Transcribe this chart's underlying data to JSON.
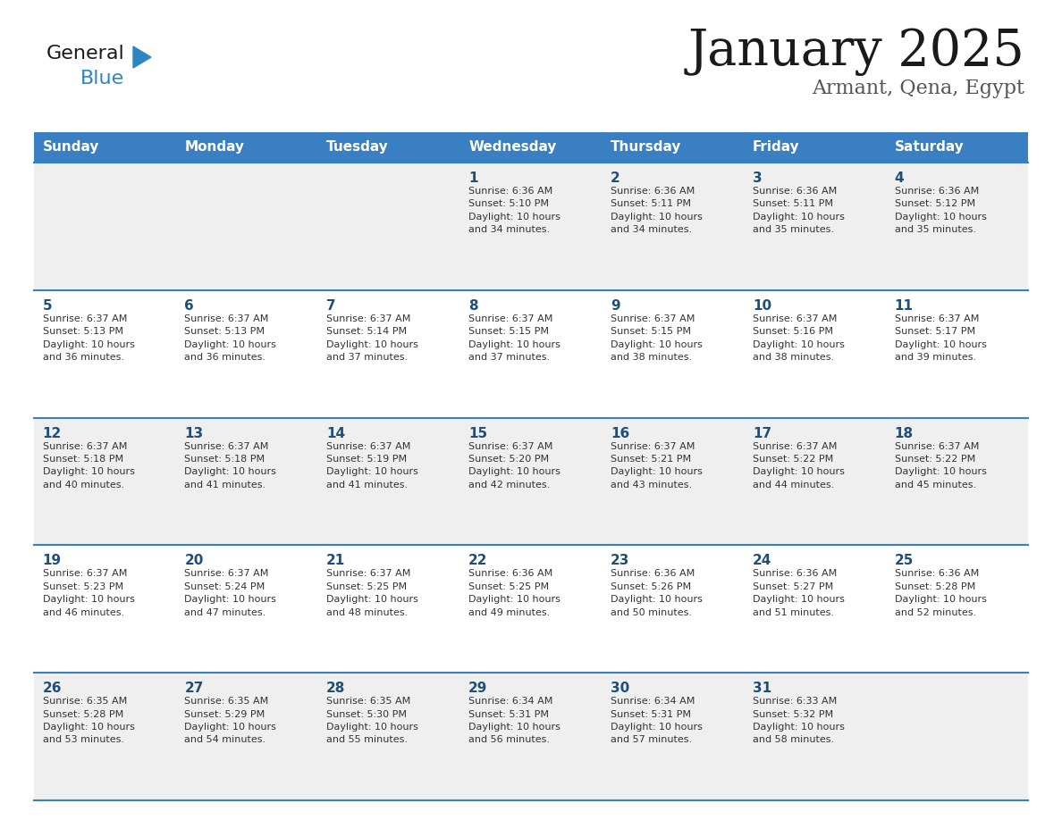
{
  "title": "January 2025",
  "subtitle": "Armant, Qena, Egypt",
  "days_of_week": [
    "Sunday",
    "Monday",
    "Tuesday",
    "Wednesday",
    "Thursday",
    "Friday",
    "Saturday"
  ],
  "header_bg": "#3A7FC1",
  "header_text_color": "#FFFFFF",
  "row_bg_even": "#EFEFEF",
  "row_bg_odd": "#FFFFFF",
  "day_text_color": "#1F4E79",
  "info_text_color": "#333333",
  "border_color": "#3A7FC1",
  "calendar": [
    [
      {
        "day": null,
        "info": null
      },
      {
        "day": null,
        "info": null
      },
      {
        "day": null,
        "info": null
      },
      {
        "day": 1,
        "info": "Sunrise: 6:36 AM\nSunset: 5:10 PM\nDaylight: 10 hours\nand 34 minutes."
      },
      {
        "day": 2,
        "info": "Sunrise: 6:36 AM\nSunset: 5:11 PM\nDaylight: 10 hours\nand 34 minutes."
      },
      {
        "day": 3,
        "info": "Sunrise: 6:36 AM\nSunset: 5:11 PM\nDaylight: 10 hours\nand 35 minutes."
      },
      {
        "day": 4,
        "info": "Sunrise: 6:36 AM\nSunset: 5:12 PM\nDaylight: 10 hours\nand 35 minutes."
      }
    ],
    [
      {
        "day": 5,
        "info": "Sunrise: 6:37 AM\nSunset: 5:13 PM\nDaylight: 10 hours\nand 36 minutes."
      },
      {
        "day": 6,
        "info": "Sunrise: 6:37 AM\nSunset: 5:13 PM\nDaylight: 10 hours\nand 36 minutes."
      },
      {
        "day": 7,
        "info": "Sunrise: 6:37 AM\nSunset: 5:14 PM\nDaylight: 10 hours\nand 37 minutes."
      },
      {
        "day": 8,
        "info": "Sunrise: 6:37 AM\nSunset: 5:15 PM\nDaylight: 10 hours\nand 37 minutes."
      },
      {
        "day": 9,
        "info": "Sunrise: 6:37 AM\nSunset: 5:15 PM\nDaylight: 10 hours\nand 38 minutes."
      },
      {
        "day": 10,
        "info": "Sunrise: 6:37 AM\nSunset: 5:16 PM\nDaylight: 10 hours\nand 38 minutes."
      },
      {
        "day": 11,
        "info": "Sunrise: 6:37 AM\nSunset: 5:17 PM\nDaylight: 10 hours\nand 39 minutes."
      }
    ],
    [
      {
        "day": 12,
        "info": "Sunrise: 6:37 AM\nSunset: 5:18 PM\nDaylight: 10 hours\nand 40 minutes."
      },
      {
        "day": 13,
        "info": "Sunrise: 6:37 AM\nSunset: 5:18 PM\nDaylight: 10 hours\nand 41 minutes."
      },
      {
        "day": 14,
        "info": "Sunrise: 6:37 AM\nSunset: 5:19 PM\nDaylight: 10 hours\nand 41 minutes."
      },
      {
        "day": 15,
        "info": "Sunrise: 6:37 AM\nSunset: 5:20 PM\nDaylight: 10 hours\nand 42 minutes."
      },
      {
        "day": 16,
        "info": "Sunrise: 6:37 AM\nSunset: 5:21 PM\nDaylight: 10 hours\nand 43 minutes."
      },
      {
        "day": 17,
        "info": "Sunrise: 6:37 AM\nSunset: 5:22 PM\nDaylight: 10 hours\nand 44 minutes."
      },
      {
        "day": 18,
        "info": "Sunrise: 6:37 AM\nSunset: 5:22 PM\nDaylight: 10 hours\nand 45 minutes."
      }
    ],
    [
      {
        "day": 19,
        "info": "Sunrise: 6:37 AM\nSunset: 5:23 PM\nDaylight: 10 hours\nand 46 minutes."
      },
      {
        "day": 20,
        "info": "Sunrise: 6:37 AM\nSunset: 5:24 PM\nDaylight: 10 hours\nand 47 minutes."
      },
      {
        "day": 21,
        "info": "Sunrise: 6:37 AM\nSunset: 5:25 PM\nDaylight: 10 hours\nand 48 minutes."
      },
      {
        "day": 22,
        "info": "Sunrise: 6:36 AM\nSunset: 5:25 PM\nDaylight: 10 hours\nand 49 minutes."
      },
      {
        "day": 23,
        "info": "Sunrise: 6:36 AM\nSunset: 5:26 PM\nDaylight: 10 hours\nand 50 minutes."
      },
      {
        "day": 24,
        "info": "Sunrise: 6:36 AM\nSunset: 5:27 PM\nDaylight: 10 hours\nand 51 minutes."
      },
      {
        "day": 25,
        "info": "Sunrise: 6:36 AM\nSunset: 5:28 PM\nDaylight: 10 hours\nand 52 minutes."
      }
    ],
    [
      {
        "day": 26,
        "info": "Sunrise: 6:35 AM\nSunset: 5:28 PM\nDaylight: 10 hours\nand 53 minutes."
      },
      {
        "day": 27,
        "info": "Sunrise: 6:35 AM\nSunset: 5:29 PM\nDaylight: 10 hours\nand 54 minutes."
      },
      {
        "day": 28,
        "info": "Sunrise: 6:35 AM\nSunset: 5:30 PM\nDaylight: 10 hours\nand 55 minutes."
      },
      {
        "day": 29,
        "info": "Sunrise: 6:34 AM\nSunset: 5:31 PM\nDaylight: 10 hours\nand 56 minutes."
      },
      {
        "day": 30,
        "info": "Sunrise: 6:34 AM\nSunset: 5:31 PM\nDaylight: 10 hours\nand 57 minutes."
      },
      {
        "day": 31,
        "info": "Sunrise: 6:33 AM\nSunset: 5:32 PM\nDaylight: 10 hours\nand 58 minutes."
      },
      {
        "day": null,
        "info": null
      }
    ]
  ],
  "logo_text_general": "General",
  "logo_text_blue": "Blue",
  "logo_color_general": "#1A1A1A",
  "logo_color_blue": "#2E86C1",
  "logo_triangle_color": "#2E86C1"
}
